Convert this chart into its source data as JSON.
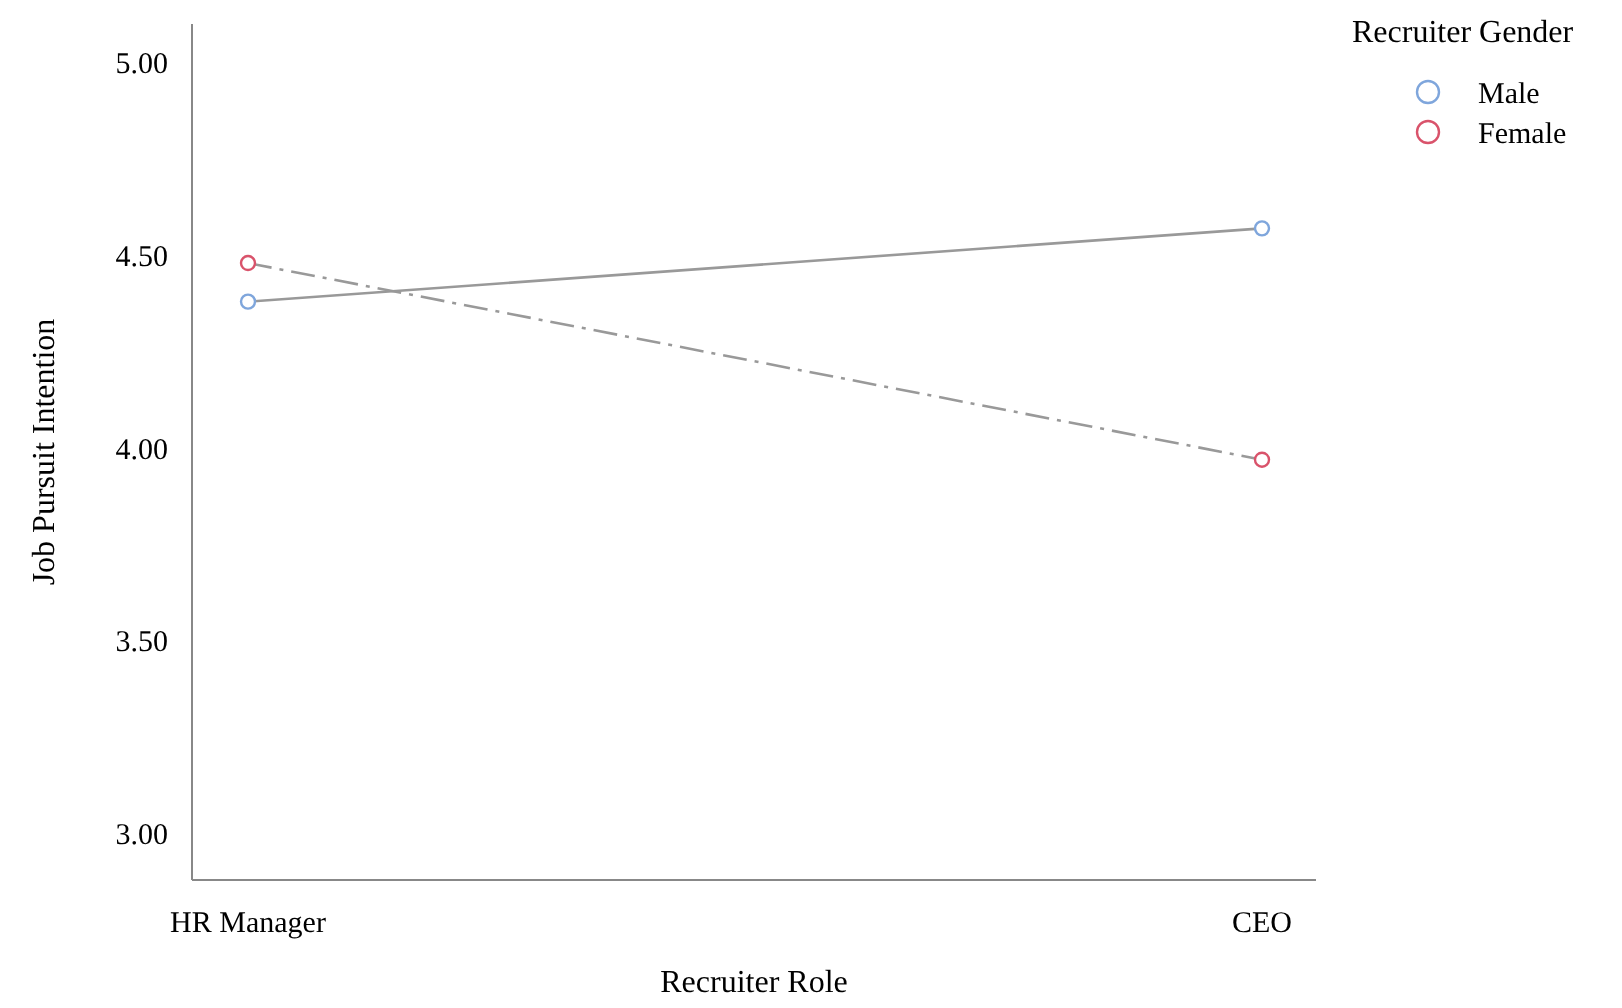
{
  "chart_data": {
    "type": "line",
    "xlabel": "Recruiter Role",
    "ylabel": "Job Pursuit Intention",
    "legend_title": "Recruiter Gender",
    "legend": "top right",
    "marker": "circle",
    "grid": false,
    "categories": [
      "HR Manager",
      "CEO"
    ],
    "ylim": [
      2.88,
      5.1
    ],
    "yticks": [
      {
        "value": 3,
        "label": "3.00"
      },
      {
        "value": 3.5,
        "label": "3.50"
      },
      {
        "value": 4,
        "label": "4.00"
      },
      {
        "value": 4.5,
        "label": "4.50"
      },
      {
        "value": 5,
        "label": "5.00"
      }
    ],
    "series": [
      {
        "name": "Male",
        "color": "#7fa6dc",
        "values": [
          4.38,
          4.57
        ],
        "line_style": "solid"
      },
      {
        "name": "Female",
        "color": "#d9536b",
        "values": [
          4.48,
          3.97
        ],
        "line_style": "dashed"
      }
    ]
  }
}
